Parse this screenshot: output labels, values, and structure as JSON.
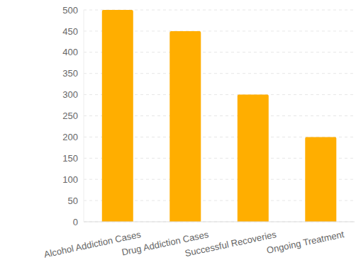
{
  "chart_data": {
    "type": "bar",
    "categories": [
      "Alcohol Addiction Cases",
      "Drug Addiction Cases",
      "Successful Recoveries",
      "Ongoing Treatment"
    ],
    "values": [
      500,
      450,
      300,
      200
    ],
    "color": "#ffae00",
    "ylim": [
      0,
      500
    ],
    "yticks": [
      0,
      50,
      100,
      150,
      200,
      250,
      300,
      350,
      400,
      450,
      500
    ],
    "grid": true
  }
}
